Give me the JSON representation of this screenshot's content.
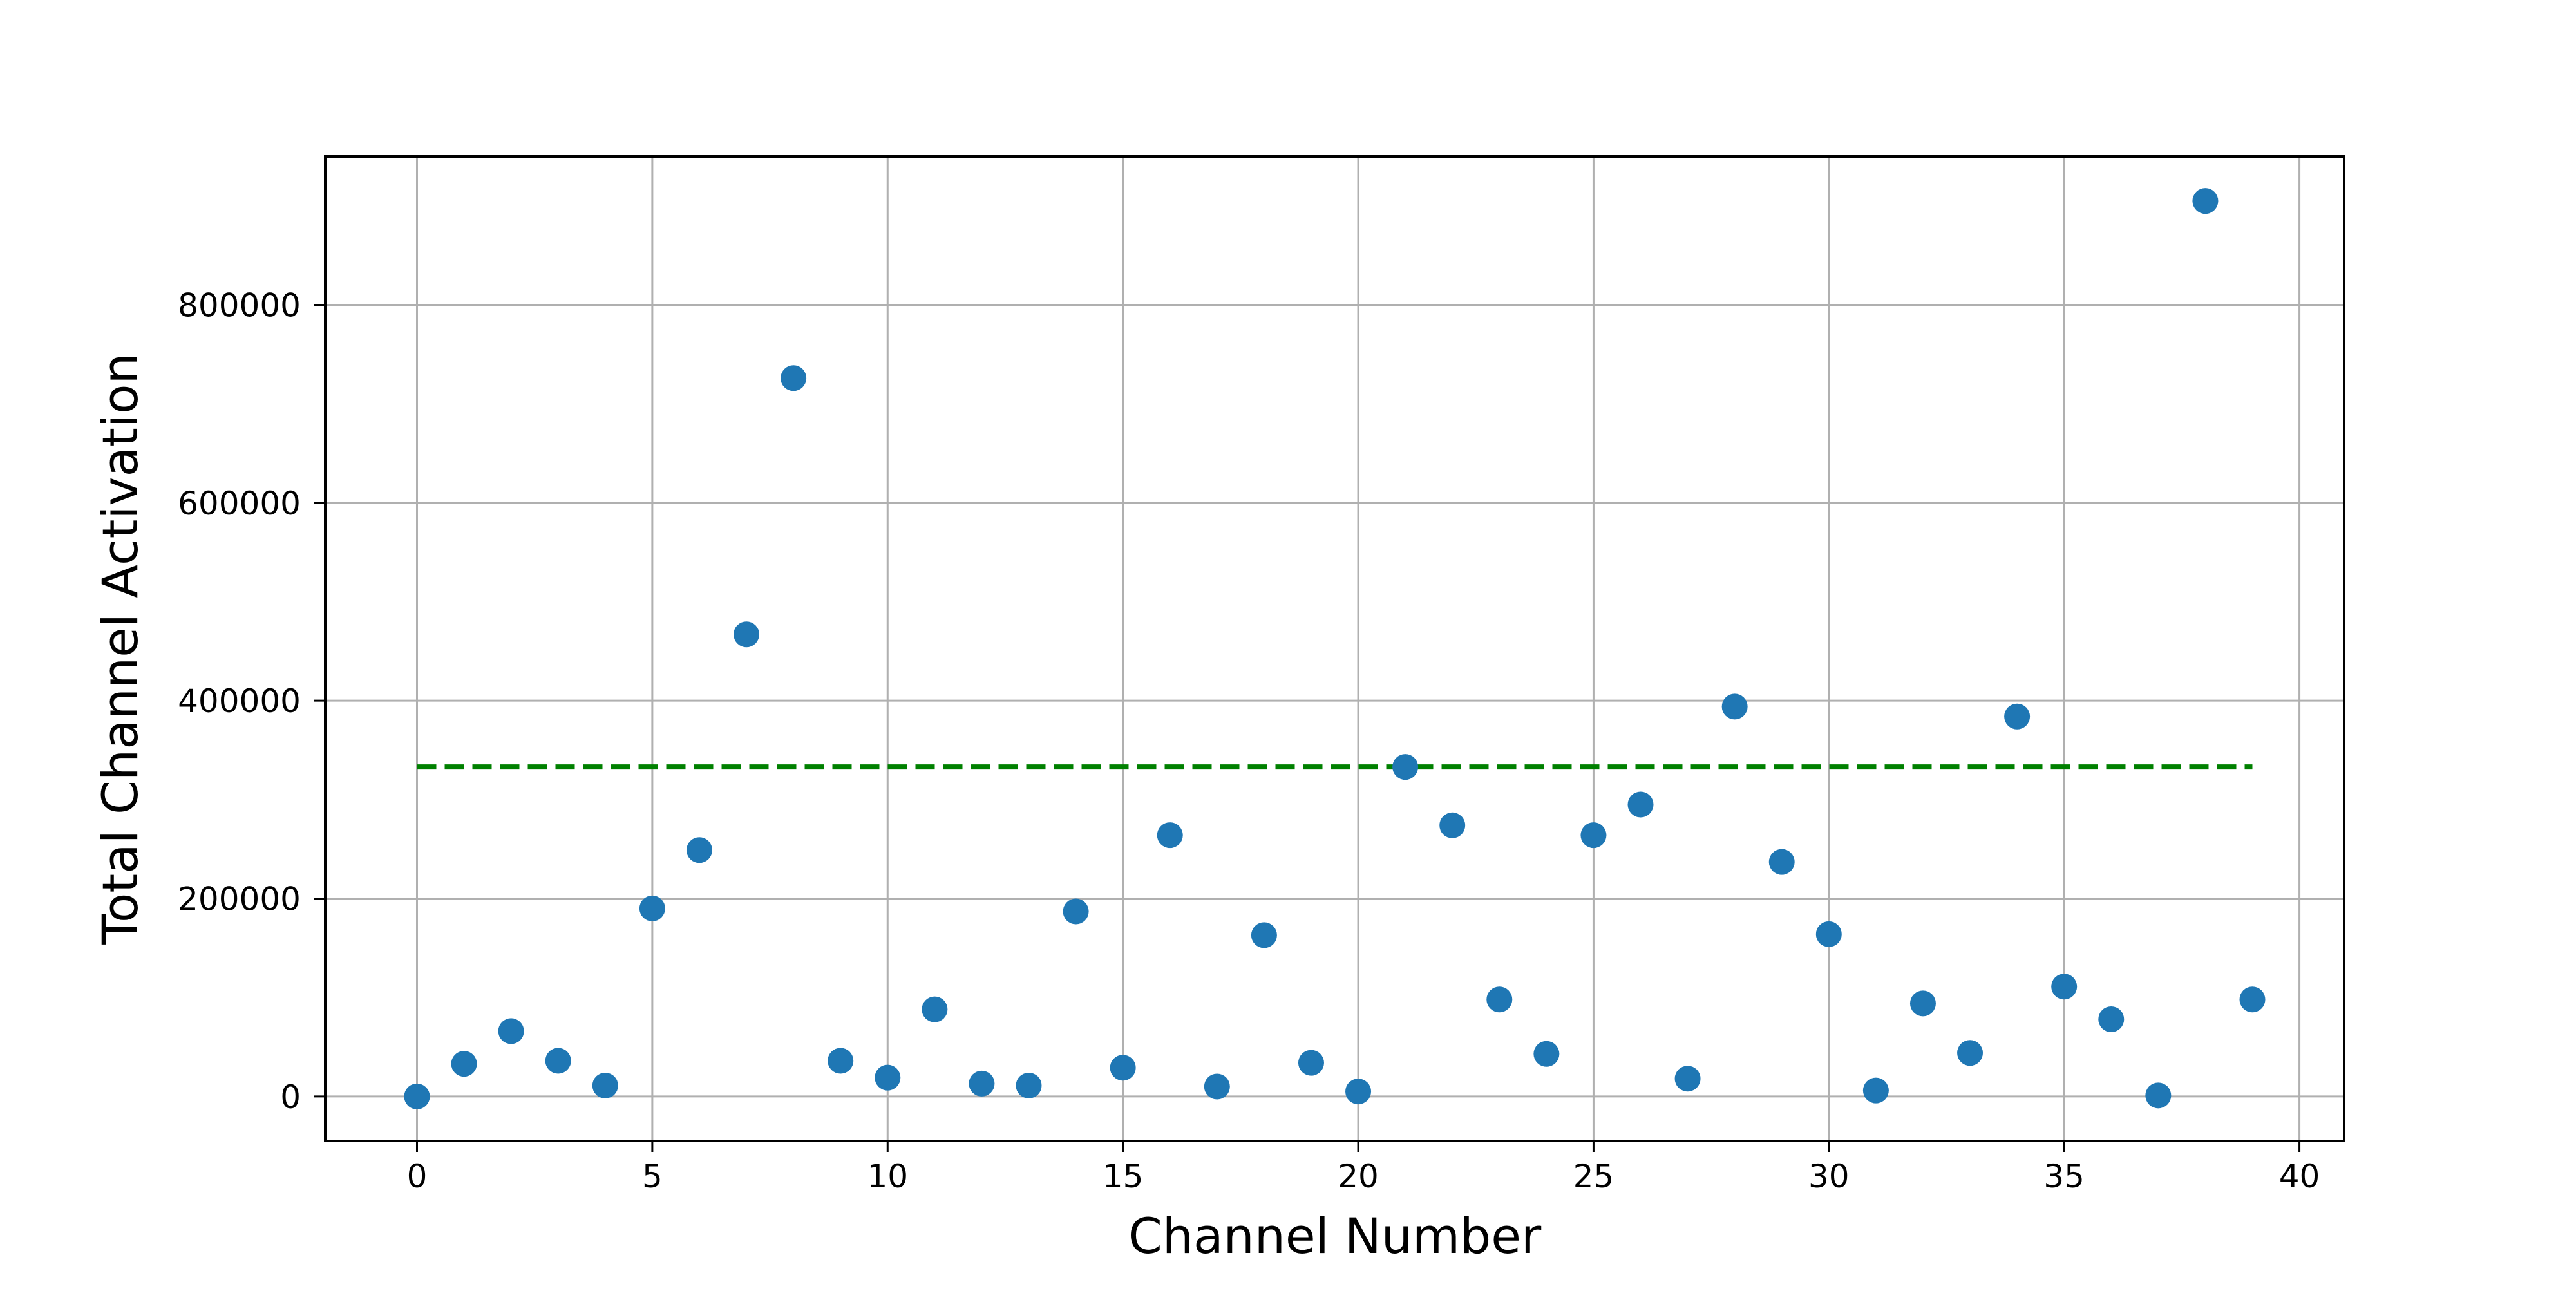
{
  "chart_data": {
    "type": "scatter",
    "title": "",
    "xlabel": "Channel Number",
    "ylabel": "Total Channel Activation",
    "xlim": [
      -1.95,
      40.95
    ],
    "ylim": [
      -45000,
      950000
    ],
    "xticks": [
      0,
      5,
      10,
      15,
      20,
      25,
      30,
      35,
      40
    ],
    "yticks": [
      0,
      200000,
      400000,
      600000,
      800000
    ],
    "grid": true,
    "series": [
      {
        "name": "",
        "color": "#1f77b4",
        "x": [
          0,
          1,
          2,
          3,
          4,
          5,
          6,
          7,
          8,
          9,
          10,
          11,
          12,
          13,
          14,
          15,
          16,
          17,
          18,
          19,
          20,
          21,
          22,
          23,
          24,
          25,
          26,
          27,
          28,
          29,
          30,
          31,
          32,
          33,
          34,
          35,
          36,
          37,
          38,
          39
        ],
        "y": [
          0,
          33000,
          66000,
          36000,
          11000,
          190000,
          249000,
          467000,
          726000,
          36000,
          19000,
          88000,
          13000,
          11000,
          187000,
          29000,
          264000,
          10000,
          163000,
          34000,
          5000,
          333000,
          274000,
          98000,
          43000,
          264000,
          295000,
          18000,
          394000,
          237000,
          164000,
          6000,
          94000,
          44000,
          384000,
          111000,
          78000,
          1000,
          905000,
          98000
        ]
      }
    ],
    "reference_line": {
      "name": "",
      "color": "#008000",
      "style": "dashed",
      "y": 333000,
      "x_range": [
        0,
        39
      ]
    }
  }
}
